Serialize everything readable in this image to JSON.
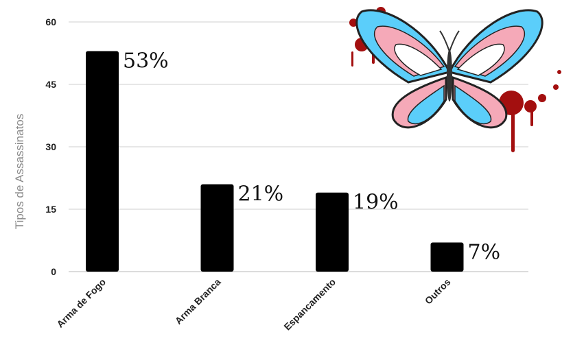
{
  "chart_data": {
    "type": "bar",
    "title": "",
    "xlabel": "",
    "ylabel": "Tipos de Assassinatos",
    "ylim": [
      0,
      60
    ],
    "yticks": [
      "0",
      "15",
      "30",
      "45",
      "60"
    ],
    "grid": true,
    "categories": [
      "Arma de Fogo",
      "Arma Branca",
      "Espancamento",
      "Outros"
    ],
    "values": [
      53,
      21,
      19,
      7
    ],
    "data_labels": [
      "53%",
      "21%",
      "19%",
      "7%"
    ],
    "bar_color": "#000000"
  },
  "decoration": {
    "icon": "butterfly-trans-flag-icon"
  }
}
